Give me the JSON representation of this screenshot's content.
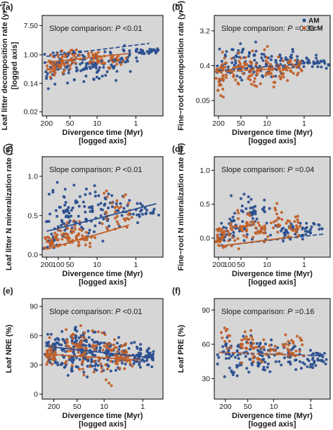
{
  "legend": {
    "entries": [
      {
        "label": "AM",
        "color": "#2b4f8f"
      },
      {
        "label": "EcM",
        "color": "#c0602a"
      }
    ]
  },
  "colors": {
    "AM": "#2b4f8f",
    "EcM": "#c0602a",
    "panel_bg": "#d6d6d6",
    "frame": "#000000"
  },
  "chart_data": [
    {
      "panel": "(a)",
      "type": "scatter",
      "ylabel": "Leaf litter decomposition rate (yr⁻¹) [logged axis]",
      "ylabel_main": "Leaf litter decomposition rate (yr",
      "ylabel_sup": "−1",
      "ylabel_end": ")",
      "ylabel_sub": "[logged axis]",
      "xlabel": "Divergence time (Myr)",
      "xlabel_sub": "[logged axis]",
      "annotation": "Slope comparison:",
      "p_sym": "P",
      "p_val": "<0.01",
      "log_y": true,
      "reversed_log_x": true,
      "xlim": [
        260,
        0.2
      ],
      "ylim": [
        0.015,
        15
      ],
      "xticks": [
        200,
        50,
        10,
        1
      ],
      "xtick_labels": [
        "200",
        "50",
        "10",
        "1"
      ],
      "yticks": [
        0.02,
        0.14,
        1.0,
        7.5
      ],
      "ytick_labels": [
        "0.02",
        "0.14",
        "1.00",
        "7.50"
      ],
      "series": [
        {
          "name": "AM",
          "line": {
            "x": [
              200,
              0.45
            ],
            "y": [
              0.9,
              2.2
            ],
            "style": "dashed"
          },
          "clusters": [
            [
              190,
              0.07,
              2.8,
              0.3
            ],
            [
              110,
              0.08,
              2.5,
              0.3
            ],
            [
              80,
              0.1,
              3.0,
              0.3
            ],
            [
              55,
              0.05,
              3.5,
              0.3
            ],
            [
              35,
              0.1,
              3.0,
              0.3
            ],
            [
              20,
              0.1,
              2.5,
              0.3
            ],
            [
              12,
              0.08,
              2.5,
              0.3
            ],
            [
              6,
              0.1,
              2.0,
              0.3
            ],
            [
              2.5,
              0.2,
              2.2,
              0.3
            ],
            [
              1.2,
              0.5,
              2.0,
              0.3
            ],
            [
              0.5,
              0.9,
              2.0,
              0.3
            ]
          ],
          "n": 190
        },
        {
          "name": "EcM",
          "line": {
            "x": [
              200,
              1.5
            ],
            "y": [
              0.6,
              1.1
            ],
            "style": "solid"
          },
          "clusters": [
            [
              190,
              0.1,
              1.2,
              0.2
            ],
            [
              110,
              0.2,
              1.8,
              0.2
            ],
            [
              65,
              0.2,
              3.0,
              0.2
            ],
            [
              30,
              0.3,
              2.0,
              0.2
            ],
            [
              12,
              0.4,
              2.0,
              0.2
            ],
            [
              6,
              0.3,
              1.5,
              0.2
            ],
            [
              2.5,
              0.3,
              1.6,
              0.2
            ]
          ],
          "n": 110
        }
      ]
    },
    {
      "panel": "(b)",
      "type": "scatter",
      "ylabel": "Fine−root decomposition rate (yr⁻¹)",
      "ylabel_main": "Fine−root decomposition rate (yr",
      "ylabel_sup": "−1",
      "ylabel_end": ")",
      "ylabel_sub": "",
      "xlabel": "Divergence time (Myr)",
      "xlabel_sub": "[logged axis]",
      "annotation": "Slope comparison:",
      "p_sym": "P",
      "p_val": "=0.33",
      "log_y": true,
      "reversed_log_x": true,
      "xlim": [
        260,
        0.2
      ],
      "ylim": [
        0.02,
        8
      ],
      "xticks": [
        200,
        50,
        10,
        1
      ],
      "xtick_labels": [
        "200",
        "50",
        "10",
        "1"
      ],
      "yticks": [
        0.05,
        0.4,
        3.2
      ],
      "ytick_labels": [
        "0.05",
        "0.4",
        "3.2"
      ],
      "series": [
        {
          "name": "AM",
          "line": {
            "x": [
              200,
              0.3
            ],
            "y": [
              0.3,
              0.5
            ],
            "style": "dashed"
          },
          "clusters": [
            [
              190,
              0.08,
              1.8,
              0.3
            ],
            [
              100,
              0.1,
              2.0,
              0.3
            ],
            [
              60,
              0.1,
              2.5,
              0.3
            ],
            [
              30,
              0.1,
              3.0,
              0.3
            ],
            [
              15,
              0.1,
              2.0,
              0.3
            ],
            [
              8,
              0.15,
              1.2,
              0.3
            ],
            [
              3,
              0.2,
              1.5,
              0.3
            ],
            [
              0.8,
              0.3,
              0.8,
              0.3
            ],
            [
              0.3,
              0.3,
              0.6,
              0.3
            ]
          ],
          "n": 150
        },
        {
          "name": "EcM",
          "line": {
            "x": [
              200,
              2
            ],
            "y": [
              0.28,
              0.35
            ],
            "style": "dashed"
          },
          "clusters": [
            [
              190,
              0.04,
              1.0,
              0.12
            ],
            [
              90,
              0.1,
              1.0,
              0.2
            ],
            [
              40,
              0.1,
              1.0,
              0.2
            ],
            [
              15,
              0.05,
              1.6,
              0.25
            ],
            [
              5,
              0.1,
              1.0,
              0.25
            ],
            [
              2,
              0.15,
              0.8,
              0.25
            ]
          ],
          "n": 160
        }
      ]
    },
    {
      "panel": "(c)",
      "type": "scatter",
      "ylabel": "Leaf litter N mineralization rate (%)",
      "ylabel_main": "Leaf litter N mineralization rate (%)",
      "ylabel_sup": "",
      "ylabel_end": "",
      "ylabel_sub": "",
      "xlabel": "Divergence time (Myr)",
      "xlabel_sub": "[logged axis]",
      "annotation": "Slope comparison:",
      "p_sym": "P",
      "p_val": "<0.01",
      "log_y": false,
      "reversed_log_x": true,
      "xlim": [
        260,
        0.2
      ],
      "ylim": [
        -0.03,
        1.25
      ],
      "xticks": [
        200,
        100,
        50,
        10,
        1
      ],
      "xtick_labels": [
        "200",
        "100",
        "50",
        "10",
        "1"
      ],
      "yticks": [
        0.0,
        0.5,
        1.0
      ],
      "ytick_labels": [
        "0.0",
        "0.5",
        "1.0"
      ],
      "series": [
        {
          "name": "AM",
          "line": {
            "x": [
              200,
              0.3
            ],
            "y": [
              0.3,
              0.65
            ],
            "style": "solid"
          },
          "clusters": [
            [
              190,
              0.0,
              0.3,
              0.3
            ],
            [
              110,
              0.0,
              0.9,
              0.3
            ],
            [
              70,
              0.1,
              1.0,
              0.3
            ],
            [
              40,
              0.05,
              1.0,
              0.3
            ],
            [
              20,
              0.0,
              1.0,
              0.3
            ],
            [
              10,
              0.1,
              0.9,
              0.3
            ],
            [
              4,
              0.2,
              0.9,
              0.3
            ],
            [
              1.5,
              0.3,
              0.8,
              0.3
            ],
            [
              0.5,
              0.4,
              0.7,
              0.3
            ]
          ],
          "n": 170
        },
        {
          "name": "EcM",
          "line": {
            "x": [
              200,
              1.5
            ],
            "y": [
              0.07,
              0.38
            ],
            "style": "solid"
          },
          "clusters": [
            [
              190,
              0.0,
              0.3,
              0.15
            ],
            [
              100,
              0.0,
              0.4,
              0.25
            ],
            [
              50,
              0.0,
              0.6,
              0.25
            ],
            [
              20,
              0.0,
              0.4,
              0.25
            ],
            [
              5,
              0.05,
              1.0,
              0.25
            ],
            [
              2,
              0.2,
              0.9,
              0.2
            ]
          ],
          "n": 120
        }
      ]
    },
    {
      "panel": "(d)",
      "type": "scatter",
      "ylabel": "Fine−root N mineralization rate (%)",
      "ylabel_main": "Fine−root N mineralization rate (%)",
      "ylabel_sup": "",
      "ylabel_end": "",
      "ylabel_sub": "",
      "xlabel": "Divergence time (Myr)",
      "xlabel_sub": "[logged axis]",
      "annotation": "Slope comparison:",
      "p_sym": "P",
      "p_val": "=0.04",
      "log_y": false,
      "reversed_log_x": true,
      "xlim": [
        260,
        0.2
      ],
      "ylim": [
        -0.28,
        1.2
      ],
      "xticks": [
        200,
        100,
        50,
        10,
        1
      ],
      "xtick_labels": [
        "200",
        "100",
        "50",
        "10",
        "1"
      ],
      "yticks": [
        0.0,
        0.5,
        1.0
      ],
      "ytick_labels": [
        "0.0",
        "0.5",
        "1.0"
      ],
      "series": [
        {
          "name": "AM",
          "line": {
            "x": [
              200,
              0.3
            ],
            "y": [
              -0.12,
              0.06
            ],
            "style": "dashed"
          },
          "clusters": [
            [
              190,
              -0.15,
              0.1,
              0.2
            ],
            [
              110,
              -0.2,
              0.4,
              0.25
            ],
            [
              60,
              -0.15,
              0.7,
              0.25
            ],
            [
              30,
              -0.1,
              0.8,
              0.25
            ],
            [
              15,
              -0.1,
              0.8,
              0.25
            ],
            [
              6,
              -0.1,
              0.4,
              0.3
            ],
            [
              2,
              -0.1,
              0.3,
              0.3
            ],
            [
              0.6,
              -0.05,
              0.3,
              0.3
            ]
          ],
          "n": 150
        },
        {
          "name": "EcM",
          "line": {
            "x": [
              200,
              2
            ],
            "y": [
              -0.12,
              0.02
            ],
            "style": "solid"
          },
          "clusters": [
            [
              190,
              -0.2,
              0.2,
              0.12
            ],
            [
              90,
              -0.2,
              0.3,
              0.2
            ],
            [
              40,
              -0.15,
              0.5,
              0.2
            ],
            [
              15,
              -0.1,
              0.3,
              0.2
            ],
            [
              5,
              -0.05,
              0.6,
              0.2
            ],
            [
              2,
              -0.05,
              0.4,
              0.2
            ]
          ],
          "n": 130
        }
      ]
    },
    {
      "panel": "(e)",
      "type": "scatter",
      "ylabel": "Leaf NRE (%)",
      "ylabel_main": "Leaf NRE (%)",
      "ylabel_sup": "",
      "ylabel_end": "",
      "ylabel_sub": "",
      "xlabel": "Divergence time (Myr)",
      "xlabel_sub": "[logged axis]",
      "annotation": "Slope comparison:",
      "p_sym": "P",
      "p_val": "<0.01",
      "log_y": false,
      "reversed_log_x": true,
      "xlim": [
        400,
        0.3
      ],
      "ylim": [
        -5,
        98
      ],
      "xticks": [
        200,
        50,
        10,
        1
      ],
      "xtick_labels": [
        "200",
        "50",
        "10",
        "1"
      ],
      "yticks": [
        0,
        30,
        60,
        90
      ],
      "ytick_labels": [
        "0",
        "30",
        "60",
        "90"
      ],
      "series": [
        {
          "name": "AM",
          "line": {
            "x": [
              300,
              0.5
            ],
            "y": [
              49,
              37
            ],
            "style": "solid"
          },
          "clusters": [
            [
              250,
              25,
              70,
              0.15
            ],
            [
              150,
              15,
              75,
              0.2
            ],
            [
              80,
              10,
              80,
              0.2
            ],
            [
              45,
              10,
              80,
              0.2
            ],
            [
              25,
              10,
              75,
              0.2
            ],
            [
              12,
              15,
              70,
              0.25
            ],
            [
              5,
              15,
              65,
              0.25
            ],
            [
              2,
              20,
              60,
              0.25
            ],
            [
              0.8,
              25,
              55,
              0.2
            ]
          ],
          "n": 320
        },
        {
          "name": "EcM",
          "line": {
            "x": [
              300,
              1.2
            ],
            "y": [
              41,
              35
            ],
            "style": "solid"
          },
          "clusters": [
            [
              240,
              25,
              60,
              0.12
            ],
            [
              60,
              10,
              80,
              0.25
            ],
            [
              25,
              10,
              80,
              0.2
            ],
            [
              8,
              5,
              75,
              0.25
            ],
            [
              3,
              20,
              60,
              0.25
            ]
          ],
          "n": 170
        }
      ]
    },
    {
      "panel": "(f)",
      "type": "scatter",
      "ylabel": "Leaf PRE (%)",
      "ylabel_main": "Leaf PRE (%)",
      "ylabel_sup": "",
      "ylabel_end": "",
      "ylabel_sub": "",
      "xlabel": "Divergence time (Myr)",
      "xlabel_sub": "[logged axis]",
      "annotation": "Slope comparison:",
      "p_sym": "P",
      "p_val": "=0.16",
      "log_y": false,
      "reversed_log_x": true,
      "xlim": [
        400,
        0.3
      ],
      "ylim": [
        12,
        100
      ],
      "xticks": [
        200,
        50,
        10,
        1
      ],
      "xtick_labels": [
        "200",
        "50",
        "10",
        "1"
      ],
      "yticks": [
        30,
        60,
        90
      ],
      "ytick_labels": [
        "30",
        "60",
        "90"
      ],
      "series": [
        {
          "name": "AM",
          "line": {
            "x": [
              300,
              0.5
            ],
            "y": [
              53,
              50
            ],
            "style": "dashed"
          },
          "clusters": [
            [
              250,
              35,
              70,
              0.2
            ],
            [
              120,
              25,
              75,
              0.25
            ],
            [
              60,
              20,
              80,
              0.25
            ],
            [
              30,
              25,
              75,
              0.25
            ],
            [
              15,
              30,
              70,
              0.25
            ],
            [
              5,
              30,
              70,
              0.25
            ],
            [
              1.5,
              30,
              65,
              0.25
            ],
            [
              0.6,
              35,
              60,
              0.2
            ]
          ],
          "n": 170
        },
        {
          "name": "EcM",
          "line": {
            "x": [
              300,
              1.2
            ],
            "y": [
              53,
              50
            ],
            "style": "dashed"
          },
          "clusters": [
            [
              200,
              40,
              90,
              0.15
            ],
            [
              60,
              35,
              80,
              0.25
            ],
            [
              25,
              35,
              75,
              0.25
            ],
            [
              8,
              40,
              75,
              0.25
            ],
            [
              3,
              40,
              70,
              0.25
            ]
          ],
          "n": 80
        }
      ]
    }
  ]
}
